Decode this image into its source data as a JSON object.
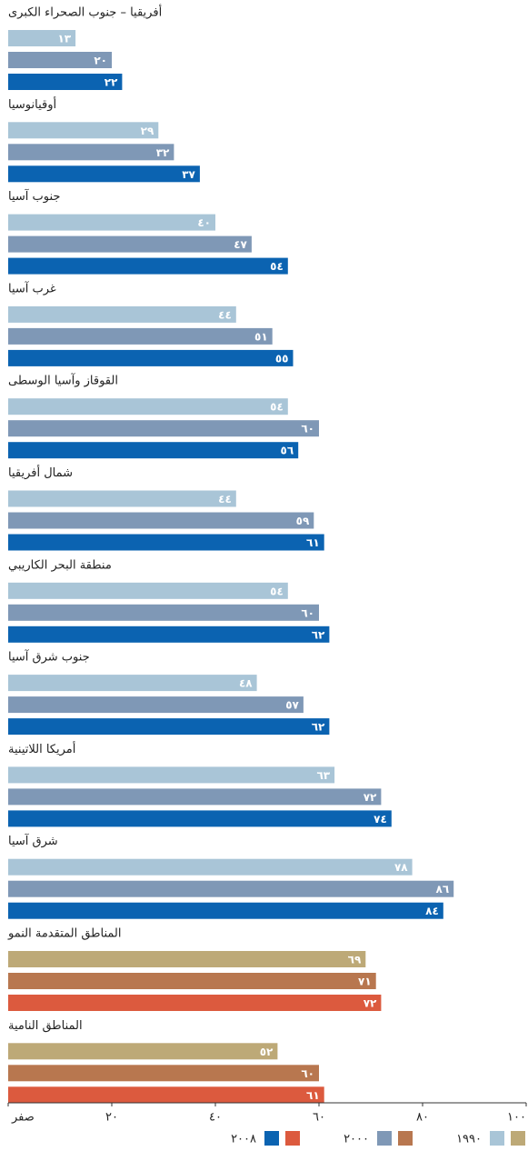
{
  "chart_data": {
    "type": "bar",
    "orientation": "horizontal",
    "categories": [
      "أفريقيا – جنوب الصحراء الكبرى",
      "أوقيانوسيا",
      "جنوب آسيا",
      "غرب آسيا",
      "القوقاز وآسيا الوسطى",
      "شمال أفريقيا",
      "منطقة البحر الكاريبي",
      "جنوب شرق آسيا",
      "أمريكا اللاتينية",
      "شرق آسيا",
      "المناطق المتقدمة النمو",
      "المناطق النامية"
    ],
    "series": [
      {
        "name": "١٩٩٠",
        "colors": [
          "#a9c5d7",
          "#a9c5d7",
          "#a9c5d7",
          "#a9c5d7",
          "#a9c5d7",
          "#a9c5d7",
          "#a9c5d7",
          "#a9c5d7",
          "#a9c5d7",
          "#a9c5d7",
          "#bda977",
          "#bda977"
        ],
        "values": [
          13,
          29,
          40,
          44,
          54,
          44,
          54,
          48,
          63,
          78,
          69,
          52
        ],
        "value_labels": [
          "١٣",
          "٢٩",
          "٤٠",
          "٤٤",
          "٥٤",
          "٤٤",
          "٥٤",
          "٤٨",
          "٦٣",
          "٧٨",
          "٦٩",
          "٥٢"
        ]
      },
      {
        "name": "٢٠٠٠",
        "colors": [
          "#7f98b6",
          "#7f98b6",
          "#7f98b6",
          "#7f98b6",
          "#7f98b6",
          "#7f98b6",
          "#7f98b6",
          "#7f98b6",
          "#7f98b6",
          "#7f98b6",
          "#b8774f",
          "#b8774f"
        ],
        "values": [
          20,
          32,
          47,
          51,
          60,
          59,
          60,
          57,
          72,
          86,
          71,
          60
        ],
        "value_labels": [
          "٢٠",
          "٣٢",
          "٤٧",
          "٥١",
          "٦٠",
          "٥٩",
          "٦٠",
          "٥٧",
          "٧٢",
          "٨٦",
          "٧١",
          "٦٠"
        ]
      },
      {
        "name": "٢٠٠٨",
        "colors": [
          "#0b63b1",
          "#0b63b1",
          "#0b63b1",
          "#0b63b1",
          "#0b63b1",
          "#0b63b1",
          "#0b63b1",
          "#0b63b1",
          "#0b63b1",
          "#0b63b1",
          "#dc5a3e",
          "#dc5a3e"
        ],
        "values": [
          22,
          37,
          54,
          55,
          56,
          61,
          62,
          62,
          74,
          84,
          72,
          61
        ],
        "value_labels": [
          "٢٢",
          "٣٧",
          "٥٤",
          "٥٥",
          "٥٦",
          "٦١",
          "٦٢",
          "٦٢",
          "٧٤",
          "٨٤",
          "٧٢",
          "٦١"
        ]
      }
    ],
    "xlim": [
      0,
      100
    ],
    "xticks": [
      {
        "value": 0,
        "label": "صفر"
      },
      {
        "value": 20,
        "label": "٢٠"
      },
      {
        "value": 40,
        "label": "٤٠"
      },
      {
        "value": 60,
        "label": "٦٠"
      },
      {
        "value": 80,
        "label": "٨٠"
      },
      {
        "value": 100,
        "label": "١٠٠"
      }
    ]
  }
}
